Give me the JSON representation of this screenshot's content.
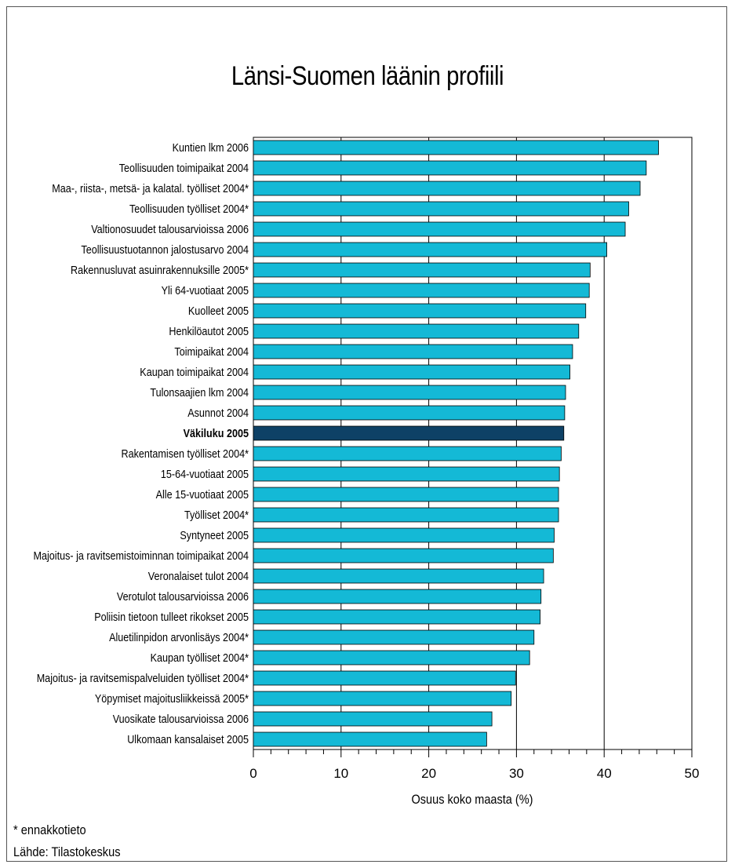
{
  "chart_data": {
    "type": "bar",
    "orientation": "horizontal",
    "title": "Länsi-Suomen läänin profiili",
    "xlabel": "Osuus koko maasta (%)",
    "ylabel": "",
    "xlim": [
      0,
      50
    ],
    "xticks": [
      0,
      10,
      20,
      30,
      40,
      50
    ],
    "grid": "vertical major",
    "categories": [
      "Kuntien lkm 2006",
      "Teollisuuden toimipaikat 2004",
      "Maa-, riista-, metsä- ja kalatal. työlliset 2004*",
      "Teollisuuden työlliset 2004*",
      "Valtionosuudet talousarvioissa 2006",
      "Teollisuustuotannon jalostusarvo 2004",
      "Rakennusluvat asuinrakennuksille 2005*",
      "Yli 64-vuotiaat 2005",
      "Kuolleet 2005",
      "Henkilöautot 2005",
      "Toimipaikat 2004",
      "Kaupan toimipaikat 2004",
      "Tulonsaajien lkm 2004",
      "Asunnot 2004",
      "Väkiluku 2005",
      "Rakentamisen työlliset 2004*",
      "15-64-vuotiaat 2005",
      "Alle 15-vuotiaat 2005",
      "Työlliset 2004*",
      "Syntyneet 2005",
      "Majoitus- ja ravitsemistoiminnan toimipaikat 2004",
      "Veronalaiset tulot 2004",
      "Verotulot talousarvioissa 2006",
      "Poliisin tietoon tulleet rikokset 2005",
      "Aluetilinpidon arvonlisäys 2004*",
      "Kaupan työlliset 2004*",
      "Majoitus- ja ravitsemispalveluiden työlliset 2004*",
      "Yöpymiset majoitusliikkeissä 2005*",
      "Vuosikate talousarvioissa 2006",
      "Ulkomaan kansalaiset 2005"
    ],
    "values": [
      46.2,
      44.8,
      44.1,
      42.8,
      42.4,
      40.3,
      38.4,
      38.3,
      37.9,
      37.1,
      36.4,
      36.1,
      35.6,
      35.5,
      35.4,
      35.1,
      34.9,
      34.8,
      34.8,
      34.3,
      34.2,
      33.1,
      32.8,
      32.7,
      32.0,
      31.5,
      29.9,
      29.4,
      27.2,
      26.6
    ],
    "highlight_category": "Väkiluku 2005",
    "colors": {
      "bar": "#14b9d6",
      "highlight": "#0e4166",
      "border": "#000000",
      "grid": "#000000"
    }
  },
  "footnote": "* ennakkotieto",
  "source": "Lähde: Tilastokeskus"
}
